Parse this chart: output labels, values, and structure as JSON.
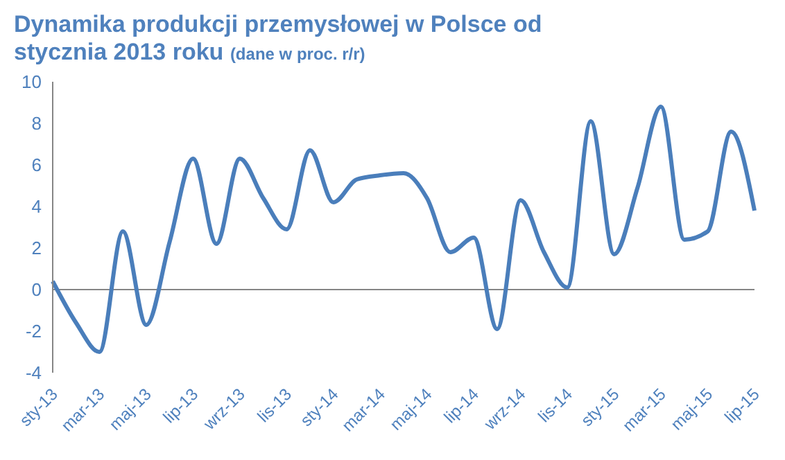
{
  "chart_data": {
    "type": "line",
    "title": "Dynamika produkcji przemysłowej w Polsce od stycznia 2013 roku",
    "subtitle": "(dane w proc. r/r)",
    "categories": [
      "sty-13",
      null,
      "mar-13",
      null,
      "maj-13",
      null,
      "lip-13",
      null,
      "wrz-13",
      null,
      "lis-13",
      null,
      "sty-14",
      null,
      "mar-14",
      null,
      "maj-14",
      null,
      "lip-14",
      null,
      "wrz-14",
      null,
      "lis-14",
      null,
      "sty-15",
      null,
      "mar-15",
      null,
      "maj-15",
      null,
      "lip-15"
    ],
    "series": [
      {
        "color": "#4a7ebb",
        "values": [
          0.4,
          -1.6,
          -3.0,
          2.8,
          -1.7,
          2.3,
          6.3,
          2.2,
          6.3,
          4.4,
          2.9,
          6.7,
          4.2,
          5.3,
          5.5,
          5.6,
          4.4,
          1.8,
          2.5,
          -1.9,
          4.3,
          1.8,
          0.1,
          8.1,
          1.7,
          4.9,
          8.8,
          2.4,
          2.8,
          7.6,
          3.8
        ]
      }
    ],
    "ylim": [
      -4,
      10
    ],
    "yticks": [
      -4,
      -2,
      0,
      2,
      4,
      6,
      8,
      10
    ],
    "marker": "none",
    "line_style": "solid"
  }
}
